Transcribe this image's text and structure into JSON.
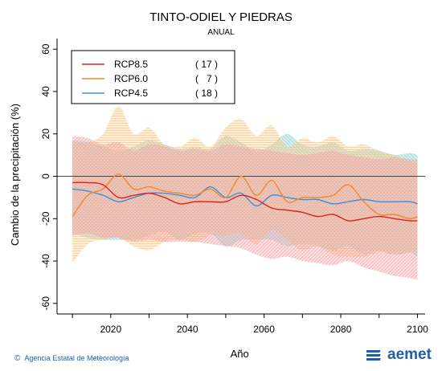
{
  "header": {
    "title": "TINTO-ODIEL Y PIEDRAS",
    "subtitle": "ANUAL"
  },
  "footer": {
    "credit": "Agencia Estatal de Meteorología",
    "logo_text": "aemet"
  },
  "colors": {
    "rcp85": "#e0201b",
    "rcp60": "#f08a2c",
    "rcp45": "#3b8ee0",
    "band_rcp85": "#f4a6a8",
    "band_rcp60": "#f9c98a",
    "band_rcp45": "#8fd0d8",
    "brand": "#1f5fa8"
  },
  "chart_data": {
    "type": "line",
    "xlabel": "Año",
    "ylabel": "Cambio de la precipitación (%)",
    "xlim": [
      2006,
      2102
    ],
    "ylim": [
      -65,
      65
    ],
    "xticks": [
      2020,
      2040,
      2060,
      2080,
      2100
    ],
    "yticks": [
      -60,
      -40,
      -20,
      0,
      20,
      40,
      60
    ],
    "grid": false,
    "legend_position": "top-left",
    "legend": [
      {
        "label": "RCP8.5",
        "count": "( 17 )",
        "series": "rcp85"
      },
      {
        "label": "RCP6.0",
        "count": "(   7 )",
        "series": "rcp60"
      },
      {
        "label": "RCP4.5",
        "count": "( 18 )",
        "series": "rcp45"
      }
    ],
    "x": [
      2010,
      2014,
      2018,
      2022,
      2026,
      2030,
      2034,
      2038,
      2042,
      2046,
      2050,
      2054,
      2058,
      2062,
      2066,
      2070,
      2074,
      2078,
      2082,
      2086,
      2090,
      2094,
      2098,
      2100
    ],
    "series": [
      {
        "key": "rcp45",
        "name": "RCP4.5",
        "values": [
          -6,
          -7,
          -9,
          -12,
          -10,
          -8,
          -8,
          -9,
          -10,
          -5,
          -10,
          -8,
          -14,
          -9,
          -10,
          -11,
          -11,
          -13,
          -12,
          -11,
          -12,
          -12,
          -12,
          -13
        ],
        "upper": [
          17,
          16,
          14,
          12,
          14,
          17,
          15,
          13,
          14,
          13,
          19,
          16,
          12,
          15,
          20,
          15,
          14,
          16,
          12,
          13,
          12,
          10,
          11,
          10
        ],
        "lower": [
          -27,
          -29,
          -30,
          -30,
          -30,
          -28,
          -26,
          -30,
          -27,
          -27,
          -33,
          -30,
          -30,
          -30,
          -33,
          -32,
          -33,
          -35,
          -33,
          -37,
          -35,
          -37,
          -36,
          -38
        ]
      },
      {
        "key": "rcp60",
        "name": "RCP6.0",
        "values": [
          -19,
          -9,
          -6,
          1,
          -6,
          -5,
          -7,
          -8,
          -9,
          -6,
          -10,
          0,
          -9,
          -2,
          -12,
          -10,
          -10,
          -9,
          -4,
          -12,
          -18,
          -18,
          -20,
          -19
        ],
        "upper": [
          16,
          16,
          20,
          33,
          20,
          23,
          15,
          14,
          18,
          14,
          23,
          27,
          19,
          24,
          14,
          18,
          16,
          19,
          14,
          15,
          12,
          10,
          7,
          6
        ],
        "lower": [
          -41,
          -32,
          -30,
          -29,
          -33,
          -35,
          -31,
          -30,
          -31,
          -28,
          -28,
          -27,
          -32,
          -25,
          -30,
          -35,
          -33,
          -37,
          -38,
          -38,
          -36,
          -37,
          -36,
          -35
        ]
      },
      {
        "key": "rcp85",
        "name": "RCP8.5",
        "values": [
          -3,
          -3,
          -4,
          -10,
          -9,
          -8,
          -10,
          -13,
          -12,
          -12,
          -12,
          -9,
          -11,
          -15,
          -16,
          -17,
          -19,
          -18,
          -21,
          -20,
          -19,
          -20,
          -21,
          -21
        ],
        "upper": [
          19,
          18,
          15,
          16,
          12,
          15,
          14,
          12,
          13,
          12,
          15,
          14,
          13,
          12,
          11,
          10,
          11,
          12,
          10,
          9,
          8,
          9,
          8,
          8
        ],
        "lower": [
          -28,
          -27,
          -29,
          -29,
          -31,
          -30,
          -31,
          -31,
          -31,
          -32,
          -33,
          -34,
          -37,
          -39,
          -38,
          -40,
          -41,
          -42,
          -40,
          -43,
          -45,
          -47,
          -48,
          -49
        ]
      }
    ]
  }
}
